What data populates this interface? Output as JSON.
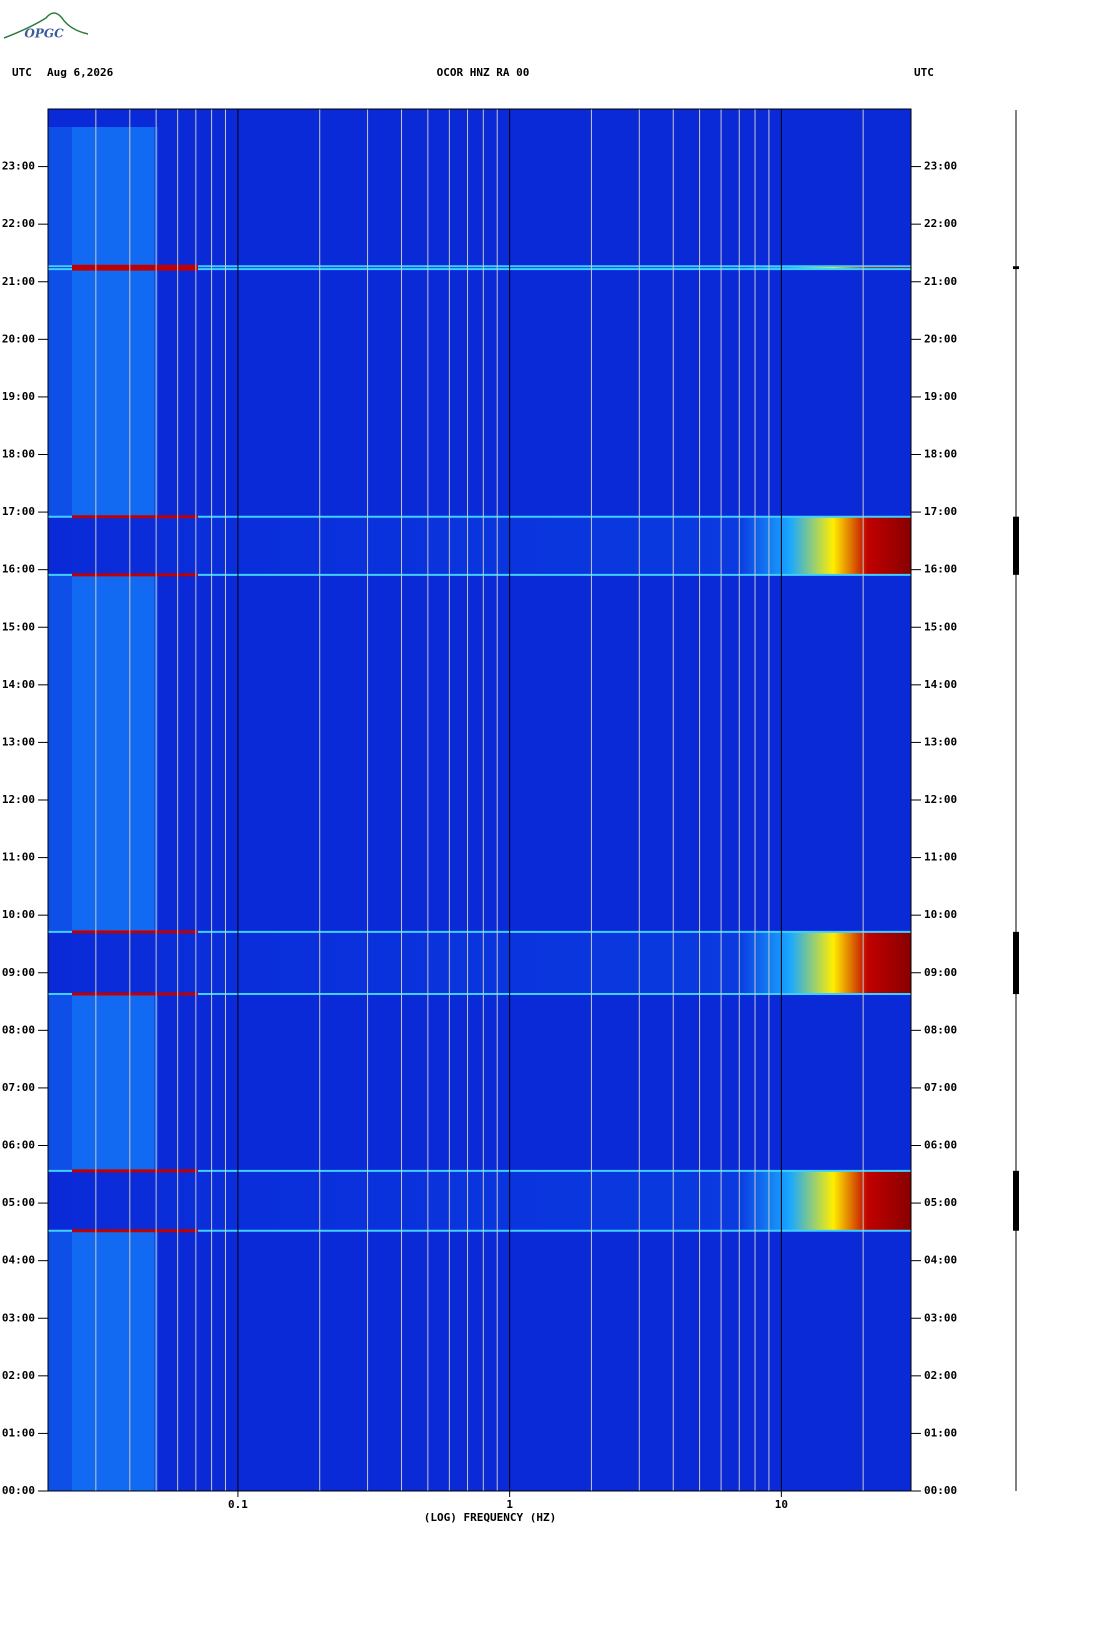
{
  "logo": "OPGC",
  "chart_data": {
    "type": "spectrogram",
    "header_left_zone": "UTC",
    "date": "Aug 6,2026",
    "title": "OCOR HNZ RA 00",
    "header_right_zone": "UTC",
    "x_label": "(LOG) FREQUENCY (HZ)",
    "x_log": true,
    "xlim": [
      0.02,
      30
    ],
    "xticks": [
      0.1,
      1,
      10
    ],
    "xminorticks": [
      0.03,
      0.04,
      0.05,
      0.06,
      0.07,
      0.08,
      0.09,
      0.2,
      0.3,
      0.4,
      0.5,
      0.6,
      0.7,
      0.8,
      0.9,
      2,
      3,
      4,
      5,
      6,
      7,
      8,
      9,
      20
    ],
    "ylim": [
      0,
      24
    ],
    "yticks": [
      {
        "value": 0,
        "label": "00:00"
      },
      {
        "value": 1,
        "label": "01:00"
      },
      {
        "value": 2,
        "label": "02:00"
      },
      {
        "value": 3,
        "label": "03:00"
      },
      {
        "value": 4,
        "label": "04:00"
      },
      {
        "value": 5,
        "label": "05:00"
      },
      {
        "value": 6,
        "label": "06:00"
      },
      {
        "value": 7,
        "label": "07:00"
      },
      {
        "value": 8,
        "label": "08:00"
      },
      {
        "value": 9,
        "label": "09:00"
      },
      {
        "value": 10,
        "label": "10:00"
      },
      {
        "value": 11,
        "label": "11:00"
      },
      {
        "value": 12,
        "label": "12:00"
      },
      {
        "value": 13,
        "label": "13:00"
      },
      {
        "value": 14,
        "label": "14:00"
      },
      {
        "value": 15,
        "label": "15:00"
      },
      {
        "value": 16,
        "label": "16:00"
      },
      {
        "value": 17,
        "label": "17:00"
      },
      {
        "value": 18,
        "label": "18:00"
      },
      {
        "value": 19,
        "label": "19:00"
      },
      {
        "value": 20,
        "label": "20:00"
      },
      {
        "value": 21,
        "label": "21:00"
      },
      {
        "value": 22,
        "label": "22:00"
      },
      {
        "value": 23,
        "label": "23:00"
      }
    ],
    "events": [
      {
        "start": 4.52,
        "end": 5.56
      },
      {
        "start": 8.63,
        "end": 9.71
      },
      {
        "start": 15.91,
        "end": 16.92
      },
      {
        "start": 21.22,
        "end": 21.27
      }
    ]
  }
}
